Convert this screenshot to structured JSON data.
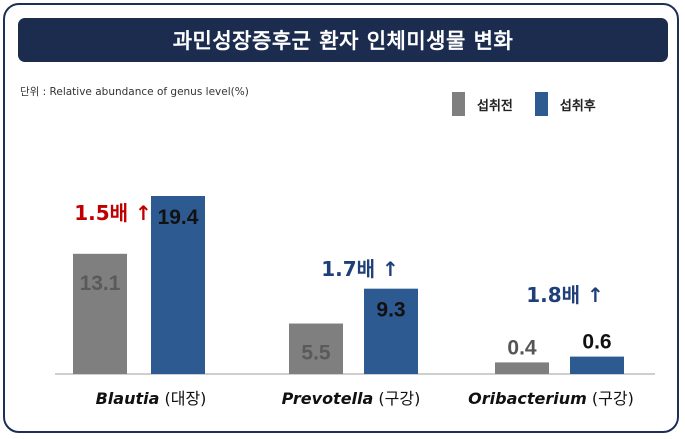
{
  "title": "과민성장증후군 환자 인체미생물 변화",
  "unit_note": "단위 : Relative abundance of genus level(%)",
  "colors": {
    "before": "#7f7f7f",
    "after": "#2e5a92",
    "frame": "#1d2f55",
    "title_bg": "#1b2c4f",
    "ratio_red": "#c00000",
    "ratio_blue": "#1f3f7a"
  },
  "legend": [
    {
      "label": "섭취전",
      "color": "#7f7f7f"
    },
    {
      "label": "섭취후",
      "color": "#2e5a92"
    }
  ],
  "chart_data": {
    "type": "bar",
    "categories": [
      {
        "genus": "Blautia",
        "site": " (대장)"
      },
      {
        "genus": "Prevotella",
        "site": " (구강)"
      },
      {
        "genus": "Oribacterium",
        "site": " (구강)"
      }
    ],
    "series": [
      {
        "name": "섭취전",
        "values": [
          13.1,
          5.5,
          0.4
        ],
        "labels": [
          "13.1",
          "5.5",
          "0.4"
        ]
      },
      {
        "name": "섭취후",
        "values": [
          19.4,
          9.3,
          0.6
        ],
        "labels": [
          "19.4",
          "9.3",
          "0.6"
        ]
      }
    ],
    "ratios": [
      {
        "text": "1.5배",
        "arrow": "↑",
        "color": "#c00000"
      },
      {
        "text": "1.7배",
        "arrow": "↑",
        "color": "#1f3f7a"
      },
      {
        "text": "1.8배",
        "arrow": "↑",
        "color": "#1f3f7a"
      }
    ],
    "bar_visual_scale": [
      1,
      1,
      10.0
    ],
    "ylim": [
      0,
      20
    ],
    "grid": false,
    "legend_position": "top-right"
  }
}
